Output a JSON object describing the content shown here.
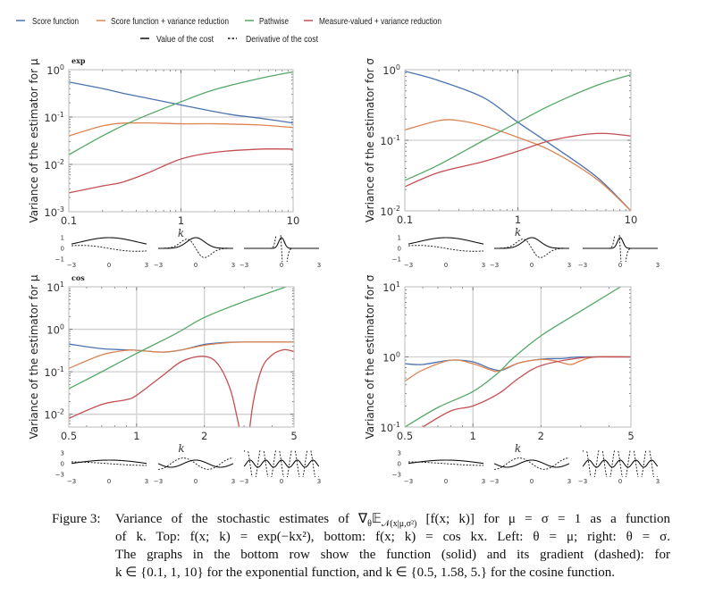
{
  "legend": {
    "methods": [
      {
        "label": "Score function",
        "color": "#4c72b0"
      },
      {
        "label": "Score function + variance reduction",
        "color": "#dd8452"
      },
      {
        "label": "Pathwise",
        "color": "#55a868"
      },
      {
        "label": "Measure-valued + variance reduction",
        "color": "#c44e52"
      }
    ],
    "styles": [
      {
        "label": "Value of the cost",
        "dash": "solid"
      },
      {
        "label": "Derivative of the cost",
        "dash": "dashed"
      }
    ]
  },
  "chart_data": [
    {
      "type": "line",
      "title": "exp",
      "ylabel": "Variance of the estimator for μ",
      "xlabel": "k",
      "xscale": "log",
      "yscale": "log",
      "xlim": [
        0.1,
        10
      ],
      "ylim": [
        0.001,
        1
      ],
      "xticks": [
        "0.1",
        "1",
        "10"
      ],
      "xtick_values": [
        0.1,
        1,
        10
      ],
      "ytick_exponents": [
        0,
        -1,
        -2,
        -3
      ],
      "grid": true,
      "series": [
        {
          "name": "Score function",
          "points": [
            [
              0.1,
              0.55
            ],
            [
              0.2,
              0.4
            ],
            [
              0.3,
              0.32
            ],
            [
              0.5,
              0.25
            ],
            [
              1,
              0.18
            ],
            [
              2,
              0.13
            ],
            [
              3,
              0.11
            ],
            [
              5,
              0.095
            ],
            [
              10,
              0.075
            ]
          ]
        },
        {
          "name": "Score function + variance reduction",
          "points": [
            [
              0.1,
              0.04
            ],
            [
              0.2,
              0.065
            ],
            [
              0.3,
              0.074
            ],
            [
              0.5,
              0.075
            ],
            [
              1,
              0.072
            ],
            [
              2,
              0.072
            ],
            [
              5,
              0.068
            ],
            [
              10,
              0.06
            ]
          ]
        },
        {
          "name": "Pathwise",
          "points": [
            [
              0.1,
              0.016
            ],
            [
              0.2,
              0.04
            ],
            [
              0.3,
              0.065
            ],
            [
              0.5,
              0.11
            ],
            [
              1,
              0.21
            ],
            [
              2,
              0.38
            ],
            [
              5,
              0.65
            ],
            [
              10,
              0.9
            ]
          ]
        },
        {
          "name": "Measure-valued + variance reduction",
          "points": [
            [
              0.1,
              0.0025
            ],
            [
              0.2,
              0.0035
            ],
            [
              0.3,
              0.0042
            ],
            [
              0.5,
              0.0065
            ],
            [
              1,
              0.013
            ],
            [
              2,
              0.018
            ],
            [
              5,
              0.021
            ],
            [
              10,
              0.021
            ]
          ]
        }
      ],
      "insets": {
        "function": "exp(-kx^2)",
        "k": [
          0.1,
          1,
          10
        ],
        "xlim": [
          -3,
          3
        ],
        "ylim": [
          -1,
          1
        ],
        "xticks": [
          "−3",
          "0",
          "3"
        ],
        "yticks": [
          "1",
          "0",
          "−1"
        ]
      }
    },
    {
      "type": "line",
      "title": "",
      "ylabel": "Variance of the estimator for σ",
      "xlabel": "k",
      "xscale": "log",
      "yscale": "log",
      "xlim": [
        0.1,
        10
      ],
      "ylim": [
        0.01,
        1
      ],
      "xticks": [
        "0.1",
        "1",
        "10"
      ],
      "xtick_values": [
        0.1,
        1,
        10
      ],
      "ytick_exponents": [
        0,
        -1,
        -2
      ],
      "grid": true,
      "series": [
        {
          "name": "Score function",
          "points": [
            [
              0.1,
              0.95
            ],
            [
              0.2,
              0.7
            ],
            [
              0.5,
              0.4
            ],
            [
              1,
              0.18
            ],
            [
              2,
              0.085
            ],
            [
              5,
              0.03
            ],
            [
              10,
              0.01
            ]
          ]
        },
        {
          "name": "Score function + variance reduction",
          "points": [
            [
              0.1,
              0.14
            ],
            [
              0.2,
              0.19
            ],
            [
              0.3,
              0.19
            ],
            [
              0.5,
              0.16
            ],
            [
              1,
              0.11
            ],
            [
              2,
              0.07
            ],
            [
              5,
              0.028
            ],
            [
              10,
              0.01
            ]
          ]
        },
        {
          "name": "Pathwise",
          "points": [
            [
              0.1,
              0.027
            ],
            [
              0.2,
              0.045
            ],
            [
              0.5,
              0.1
            ],
            [
              1,
              0.18
            ],
            [
              2,
              0.32
            ],
            [
              5,
              0.6
            ],
            [
              10,
              0.85
            ]
          ]
        },
        {
          "name": "Measure-valued + variance reduction",
          "points": [
            [
              0.1,
              0.022
            ],
            [
              0.2,
              0.035
            ],
            [
              0.5,
              0.05
            ],
            [
              1,
              0.07
            ],
            [
              2,
              0.1
            ],
            [
              5,
              0.125
            ],
            [
              10,
              0.115
            ]
          ]
        }
      ],
      "insets": {
        "function": "exp(-kx^2)",
        "k": [
          0.1,
          1,
          10
        ],
        "xlim": [
          -3,
          3
        ],
        "ylim": [
          -1,
          1
        ],
        "xticks": [
          "−3",
          "0",
          "3"
        ],
        "yticks": [
          "1",
          "0",
          "−1"
        ]
      }
    },
    {
      "type": "line",
      "title": "cos",
      "ylabel": "Variance of the estimator for μ",
      "xlabel": "k",
      "xscale": "log",
      "yscale": "log",
      "xlim": [
        0.5,
        5
      ],
      "ylim": [
        0.005,
        10
      ],
      "xticks": [
        "0.5",
        "1",
        "2",
        "5"
      ],
      "xtick_values": [
        0.5,
        1,
        2,
        5
      ],
      "ytick_exponents": [
        1,
        0,
        -1,
        -2
      ],
      "grid": true,
      "series": [
        {
          "name": "Score function",
          "points": [
            [
              0.5,
              0.45
            ],
            [
              0.7,
              0.35
            ],
            [
              1,
              0.32
            ],
            [
              1.3,
              0.29
            ],
            [
              1.6,
              0.33
            ],
            [
              2,
              0.44
            ],
            [
              2.5,
              0.49
            ],
            [
              3,
              0.5
            ],
            [
              5,
              0.5
            ]
          ]
        },
        {
          "name": "Score function + variance reduction",
          "points": [
            [
              0.5,
              0.12
            ],
            [
              0.7,
              0.25
            ],
            [
              0.9,
              0.32
            ],
            [
              1,
              0.32
            ],
            [
              1.3,
              0.29
            ],
            [
              1.6,
              0.33
            ],
            [
              2,
              0.42
            ],
            [
              2.5,
              0.48
            ],
            [
              3,
              0.5
            ],
            [
              5,
              0.5
            ]
          ]
        },
        {
          "name": "Pathwise",
          "points": [
            [
              0.5,
              0.04
            ],
            [
              0.7,
              0.1
            ],
            [
              1,
              0.27
            ],
            [
              1.5,
              0.8
            ],
            [
              2,
              1.9
            ],
            [
              3,
              4.5
            ],
            [
              4.6,
              10
            ],
            [
              5,
              13
            ]
          ]
        },
        {
          "name": "Measure-valued + variance reduction",
          "points": [
            [
              0.5,
              0.008
            ],
            [
              0.7,
              0.017
            ],
            [
              0.9,
              0.022
            ],
            [
              1,
              0.028
            ],
            [
              1.3,
              0.08
            ],
            [
              1.6,
              0.18
            ],
            [
              2,
              0.23
            ],
            [
              2.3,
              0.15
            ],
            [
              2.6,
              0.04
            ],
            [
              2.8,
              0.008
            ],
            [
              2.95,
              0.002
            ],
            null,
            [
              3.12,
              0.002
            ],
            [
              3.3,
              0.02
            ],
            [
              3.6,
              0.12
            ],
            [
              4,
              0.25
            ],
            [
              4.5,
              0.33
            ],
            [
              5,
              0.3
            ]
          ]
        }
      ],
      "insets": {
        "function": "cos(kx)",
        "k": [
          0.5,
          1.58,
          5
        ],
        "xlim": [
          -3,
          3
        ],
        "ylim": [
          -3,
          3
        ],
        "xticks": [
          "−3",
          "0",
          "3"
        ],
        "yticks": [
          "3",
          "0",
          "−3"
        ]
      }
    },
    {
      "type": "line",
      "title": "",
      "ylabel": "Variance of the estimator for σ",
      "xlabel": "k",
      "xscale": "log",
      "yscale": "log",
      "xlim": [
        0.5,
        5
      ],
      "ylim": [
        0.1,
        10
      ],
      "xticks": [
        "0.5",
        "1",
        "2",
        "5"
      ],
      "xtick_values": [
        0.5,
        1,
        2,
        5
      ],
      "ytick_exponents": [
        1,
        0,
        -1
      ],
      "grid": true,
      "series": [
        {
          "name": "Score function",
          "points": [
            [
              0.5,
              0.8
            ],
            [
              0.6,
              0.78
            ],
            [
              0.8,
              0.9
            ],
            [
              1,
              0.85
            ],
            [
              1.2,
              0.68
            ],
            [
              1.35,
              0.65
            ],
            [
              1.6,
              0.82
            ],
            [
              2,
              0.93
            ],
            [
              2.5,
              0.95
            ],
            [
              3,
              1.0
            ],
            [
              5,
              1.0
            ]
          ]
        },
        {
          "name": "Score function + variance reduction",
          "points": [
            [
              0.5,
              0.45
            ],
            [
              0.6,
              0.65
            ],
            [
              0.8,
              0.9
            ],
            [
              1,
              0.8
            ],
            [
              1.2,
              0.65
            ],
            [
              1.3,
              0.63
            ],
            [
              1.6,
              0.82
            ],
            [
              2,
              0.92
            ],
            [
              2.3,
              0.88
            ],
            [
              2.7,
              0.78
            ],
            [
              3,
              0.88
            ],
            [
              3.5,
              1.0
            ],
            [
              5,
              1.0
            ]
          ]
        },
        {
          "name": "Pathwise",
          "points": [
            [
              0.5,
              0.1
            ],
            [
              0.7,
              0.19
            ],
            [
              1,
              0.32
            ],
            [
              1.3,
              0.6
            ],
            [
              1.5,
              0.95
            ],
            [
              2,
              2.0
            ],
            [
              3,
              4.5
            ],
            [
              4.5,
              10
            ],
            [
              5,
              12
            ]
          ]
        },
        {
          "name": "Measure-valued + variance reduction",
          "points": [
            [
              0.55,
              0.08
            ],
            [
              0.6,
              0.1
            ],
            [
              0.8,
              0.17
            ],
            [
              1,
              0.2
            ],
            [
              1.3,
              0.3
            ],
            [
              1.6,
              0.5
            ],
            [
              2,
              0.75
            ],
            [
              3,
              0.97
            ],
            [
              4,
              1.0
            ],
            [
              5,
              1.0
            ]
          ]
        }
      ],
      "insets": {
        "function": "cos(kx)",
        "k": [
          0.5,
          1.58,
          5
        ],
        "xlim": [
          -3,
          3
        ],
        "ylim": [
          -3,
          3
        ],
        "xticks": [
          "−3",
          "0",
          "3"
        ],
        "yticks": [
          "3",
          "0",
          "−3"
        ]
      }
    }
  ],
  "caption": {
    "label": "Figure 3:",
    "line1": {
      "pre": "Variance of the stochastic estimates of ",
      "nabla": "∇",
      "theta": "θ",
      "E": "𝔼",
      "sub": "𝒩(x|μ,σ²)",
      "post": " [f(x; k)] for μ = σ = 1 as a function"
    },
    "line2": "of k.  Top: f(x; k) = exp(−kx²), bottom: f(x; k) = cos kx.  Left: θ = μ; right: θ = σ.",
    "line3": "The graphs in the bottom row show the function (solid) and its gradient (dashed): for",
    "line4": "k ∈ {0.1, 1, 10} for the exponential function, and k ∈ {0.5, 1.58, 5.} for the cosine function."
  }
}
